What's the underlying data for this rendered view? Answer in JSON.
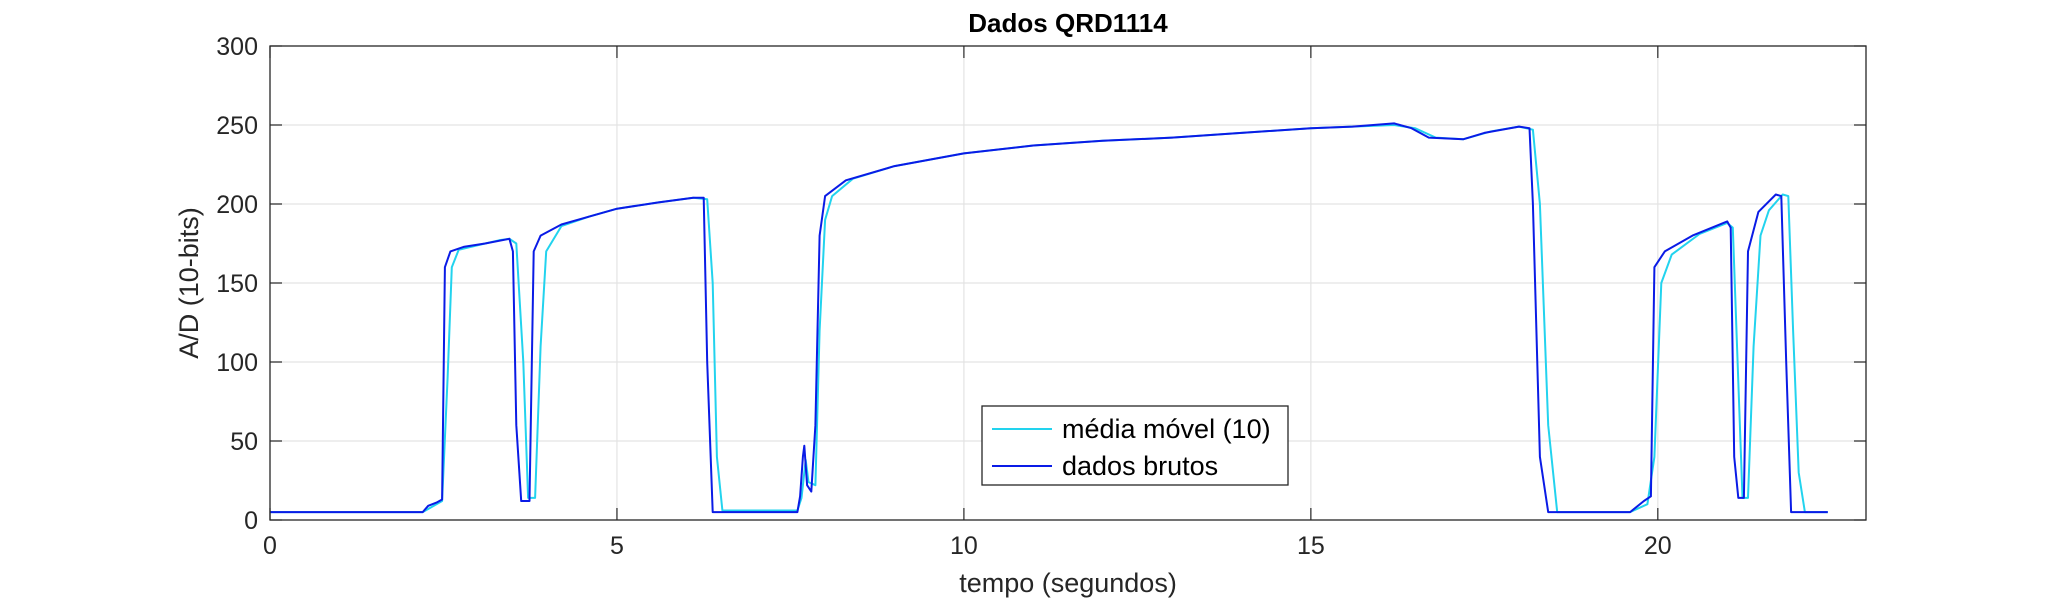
{
  "chart_data": {
    "type": "line",
    "title": "Dados QRD1114",
    "xlabel": "tempo (segundos)",
    "ylabel": "A/D (10-bits)",
    "xlim": [
      0,
      23
    ],
    "ylim": [
      0,
      300
    ],
    "x_ticks": [
      0,
      5,
      10,
      15,
      20
    ],
    "y_ticks": [
      0,
      50,
      100,
      150,
      200,
      250,
      300
    ],
    "grid": true,
    "legend_position": "bottom-center",
    "series": [
      {
        "name": "média móvel (10)",
        "color": "#22d3ee",
        "points": [
          [
            0,
            5
          ],
          [
            2.2,
            5
          ],
          [
            2.32,
            8
          ],
          [
            2.48,
            12
          ],
          [
            2.56,
            90
          ],
          [
            2.62,
            160
          ],
          [
            2.72,
            171
          ],
          [
            3.0,
            174
          ],
          [
            3.3,
            177
          ],
          [
            3.45,
            178
          ],
          [
            3.55,
            175
          ],
          [
            3.65,
            100
          ],
          [
            3.72,
            14
          ],
          [
            3.82,
            14
          ],
          [
            3.9,
            110
          ],
          [
            3.98,
            170
          ],
          [
            4.2,
            186
          ],
          [
            4.6,
            192
          ],
          [
            5.0,
            197
          ],
          [
            5.6,
            201
          ],
          [
            6.1,
            204
          ],
          [
            6.3,
            203
          ],
          [
            6.38,
            150
          ],
          [
            6.44,
            40
          ],
          [
            6.52,
            6
          ],
          [
            7.6,
            6
          ],
          [
            7.66,
            14
          ],
          [
            7.7,
            30
          ],
          [
            7.72,
            38
          ],
          [
            7.76,
            24
          ],
          [
            7.86,
            22
          ],
          [
            7.92,
            120
          ],
          [
            8.0,
            190
          ],
          [
            8.1,
            205
          ],
          [
            8.4,
            216
          ],
          [
            9.0,
            224
          ],
          [
            10.0,
            232
          ],
          [
            11.0,
            237
          ],
          [
            12.0,
            240
          ],
          [
            13.0,
            242
          ],
          [
            14.0,
            245
          ],
          [
            15.0,
            248
          ],
          [
            15.6,
            249
          ],
          [
            16.2,
            250
          ],
          [
            16.5,
            248
          ],
          [
            16.8,
            242
          ],
          [
            17.2,
            241
          ],
          [
            17.6,
            246
          ],
          [
            18.0,
            249
          ],
          [
            18.2,
            247
          ],
          [
            18.3,
            200
          ],
          [
            18.42,
            60
          ],
          [
            18.55,
            5
          ],
          [
            19.6,
            5
          ],
          [
            19.85,
            10
          ],
          [
            19.95,
            40
          ],
          [
            20.05,
            150
          ],
          [
            20.2,
            168
          ],
          [
            20.6,
            181
          ],
          [
            21.0,
            188
          ],
          [
            21.08,
            185
          ],
          [
            21.15,
            100
          ],
          [
            21.22,
            14
          ],
          [
            21.3,
            14
          ],
          [
            21.38,
            110
          ],
          [
            21.48,
            180
          ],
          [
            21.6,
            196
          ],
          [
            21.8,
            206
          ],
          [
            21.88,
            205
          ],
          [
            21.95,
            120
          ],
          [
            22.03,
            30
          ],
          [
            22.12,
            5
          ],
          [
            22.45,
            5
          ]
        ]
      },
      {
        "name": "dados brutos",
        "color": "#0a1be6",
        "points": [
          [
            0,
            5
          ],
          [
            2.2,
            5
          ],
          [
            2.28,
            9
          ],
          [
            2.4,
            11
          ],
          [
            2.48,
            13
          ],
          [
            2.52,
            160
          ],
          [
            2.6,
            170
          ],
          [
            2.8,
            173
          ],
          [
            3.1,
            175
          ],
          [
            3.45,
            178
          ],
          [
            3.5,
            170
          ],
          [
            3.55,
            60
          ],
          [
            3.62,
            12
          ],
          [
            3.74,
            12
          ],
          [
            3.8,
            170
          ],
          [
            3.9,
            180
          ],
          [
            4.2,
            187
          ],
          [
            4.6,
            192
          ],
          [
            5.0,
            197
          ],
          [
            5.6,
            201
          ],
          [
            6.1,
            204
          ],
          [
            6.25,
            204
          ],
          [
            6.3,
            100
          ],
          [
            6.38,
            5
          ],
          [
            7.6,
            5
          ],
          [
            7.64,
            15
          ],
          [
            7.68,
            40
          ],
          [
            7.7,
            47
          ],
          [
            7.74,
            22
          ],
          [
            7.8,
            18
          ],
          [
            7.86,
            60
          ],
          [
            7.92,
            180
          ],
          [
            8.0,
            205
          ],
          [
            8.3,
            215
          ],
          [
            9.0,
            224
          ],
          [
            10.0,
            232
          ],
          [
            11.0,
            237
          ],
          [
            12.0,
            240
          ],
          [
            13.0,
            242
          ],
          [
            14.0,
            245
          ],
          [
            15.0,
            248
          ],
          [
            15.6,
            249
          ],
          [
            16.2,
            251
          ],
          [
            16.45,
            248
          ],
          [
            16.7,
            242
          ],
          [
            17.2,
            241
          ],
          [
            17.5,
            245
          ],
          [
            18.0,
            249
          ],
          [
            18.15,
            248
          ],
          [
            18.2,
            200
          ],
          [
            18.3,
            40
          ],
          [
            18.42,
            5
          ],
          [
            19.6,
            5
          ],
          [
            19.8,
            12
          ],
          [
            19.9,
            15
          ],
          [
            19.95,
            160
          ],
          [
            20.1,
            170
          ],
          [
            20.5,
            180
          ],
          [
            21.0,
            189
          ],
          [
            21.05,
            185
          ],
          [
            21.1,
            40
          ],
          [
            21.16,
            14
          ],
          [
            21.24,
            14
          ],
          [
            21.3,
            170
          ],
          [
            21.45,
            195
          ],
          [
            21.7,
            206
          ],
          [
            21.78,
            205
          ],
          [
            21.85,
            100
          ],
          [
            21.92,
            5
          ],
          [
            22.45,
            5
          ]
        ]
      }
    ]
  }
}
